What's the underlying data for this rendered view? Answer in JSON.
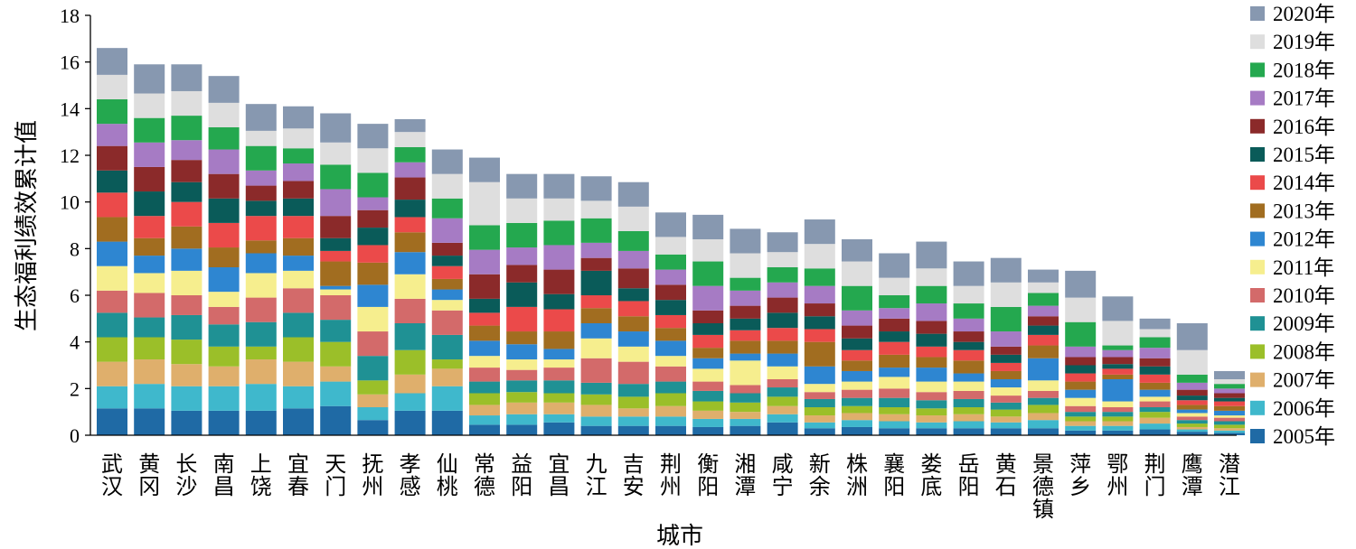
{
  "chart_data": {
    "type": "bar",
    "stacked": true,
    "title": "",
    "xlabel": "城市",
    "ylabel": "生态福利绩效累计值",
    "ylim": [
      0,
      18
    ],
    "yticks": [
      0,
      2,
      4,
      6,
      8,
      10,
      12,
      14,
      16,
      18
    ],
    "grid": false,
    "legend_position": "right",
    "categories": [
      "武汉",
      "黄冈",
      "长沙",
      "南昌",
      "上饶",
      "宜春",
      "天门",
      "抚州",
      "孝感",
      "仙桃",
      "常德",
      "益阳",
      "宜昌",
      "九江",
      "吉安",
      "荆州",
      "衡阳",
      "湘潭",
      "咸宁",
      "新余",
      "株洲",
      "襄阳",
      "娄底",
      "岳阳",
      "黄石",
      "景德镇",
      "萍乡",
      "鄂州",
      "荆门",
      "鹰潭",
      "潜江"
    ],
    "series": [
      {
        "name": "2005年",
        "color": "#1f6aa5",
        "values": [
          1.15,
          1.15,
          1.05,
          1.05,
          1.05,
          1.15,
          1.25,
          0.65,
          1.05,
          1.05,
          0.45,
          0.45,
          0.55,
          0.4,
          0.4,
          0.4,
          0.35,
          0.4,
          0.55,
          0.3,
          0.35,
          0.3,
          0.3,
          0.3,
          0.3,
          0.3,
          0.2,
          0.2,
          0.25,
          0.15,
          0.1
        ]
      },
      {
        "name": "2006年",
        "color": "#3fb8cc",
        "values": [
          0.95,
          1.05,
          1.05,
          1.05,
          1.15,
          0.95,
          1.05,
          0.55,
          0.75,
          1.05,
          0.4,
          0.45,
          0.35,
          0.4,
          0.4,
          0.4,
          0.35,
          0.3,
          0.35,
          0.25,
          0.3,
          0.3,
          0.25,
          0.3,
          0.25,
          0.35,
          0.2,
          0.2,
          0.25,
          0.1,
          0.1
        ]
      },
      {
        "name": "2007年",
        "color": "#dfaf6c",
        "values": [
          1.05,
          1.05,
          0.95,
          0.85,
          1.05,
          1.05,
          0.65,
          0.55,
          0.8,
          0.75,
          0.45,
          0.5,
          0.5,
          0.5,
          0.35,
          0.45,
          0.35,
          0.3,
          0.35,
          0.3,
          0.3,
          0.3,
          0.3,
          0.3,
          0.25,
          0.3,
          0.2,
          0.2,
          0.25,
          0.1,
          0.1
        ]
      },
      {
        "name": "2008年",
        "color": "#9bbf29",
        "values": [
          1.05,
          0.95,
          1.05,
          0.85,
          0.55,
          1.05,
          1.05,
          0.6,
          1.05,
          0.4,
          0.5,
          0.45,
          0.4,
          0.45,
          0.5,
          0.55,
          0.4,
          0.4,
          0.4,
          0.35,
          0.3,
          0.3,
          0.3,
          0.3,
          0.3,
          0.35,
          0.2,
          0.2,
          0.25,
          0.15,
          0.15
        ]
      },
      {
        "name": "2009年",
        "color": "#1f9194",
        "values": [
          1.05,
          0.85,
          1.05,
          0.95,
          1.05,
          1.05,
          0.95,
          1.05,
          1.15,
          1.05,
          0.5,
          0.5,
          0.55,
          0.5,
          0.55,
          0.5,
          0.45,
          0.4,
          0.4,
          0.35,
          0.35,
          0.4,
          0.35,
          0.35,
          0.3,
          0.3,
          0.2,
          0.2,
          0.2,
          0.15,
          0.15
        ]
      },
      {
        "name": "2010年",
        "color": "#d36a6a",
        "values": [
          0.95,
          1.05,
          0.85,
          0.75,
          1.05,
          1.05,
          1.05,
          1.05,
          1.05,
          1.05,
          0.6,
          0.45,
          0.55,
          1.05,
          0.95,
          0.65,
          0.4,
          0.35,
          0.35,
          0.3,
          0.35,
          0.4,
          0.35,
          0.35,
          0.3,
          0.3,
          0.25,
          0.2,
          0.25,
          0.15,
          0.15
        ]
      },
      {
        "name": "2011年",
        "color": "#f6ee8e",
        "values": [
          1.05,
          0.85,
          1.05,
          0.65,
          1.05,
          0.75,
          0.25,
          1.05,
          1.05,
          0.45,
          0.5,
          0.45,
          0.35,
          0.85,
          0.65,
          0.45,
          0.55,
          1.05,
          0.55,
          0.35,
          0.35,
          0.5,
          0.45,
          0.4,
          0.35,
          0.45,
          0.35,
          0.25,
          0.2,
          0.15,
          0.1
        ]
      },
      {
        "name": "2012年",
        "color": "#2e86d1",
        "values": [
          1.05,
          0.75,
          0.95,
          1.05,
          0.85,
          0.65,
          0.15,
          0.95,
          0.95,
          0.45,
          0.65,
          0.65,
          0.45,
          0.65,
          0.65,
          0.65,
          0.45,
          0.3,
          0.55,
          0.75,
          0.45,
          0.4,
          0.6,
          0.35,
          0.35,
          0.95,
          0.35,
          0.95,
          0.3,
          0.15,
          0.2
        ]
      },
      {
        "name": "2013年",
        "color": "#a16d20",
        "values": [
          1.05,
          0.75,
          0.95,
          0.85,
          0.55,
          0.75,
          1.05,
          0.95,
          0.85,
          0.45,
          0.65,
          0.55,
          0.75,
          0.65,
          0.65,
          0.55,
          0.45,
          0.55,
          0.55,
          1.05,
          0.45,
          0.55,
          0.45,
          0.55,
          0.35,
          0.55,
          0.35,
          0.2,
          0.3,
          0.2,
          0.2
        ]
      },
      {
        "name": "2014年",
        "color": "#eb4a4a",
        "values": [
          1.05,
          0.95,
          1.05,
          1.05,
          1.05,
          0.95,
          0.45,
          0.75,
          0.65,
          0.55,
          0.55,
          1.05,
          0.95,
          0.55,
          0.65,
          0.55,
          0.55,
          0.45,
          0.55,
          0.55,
          0.45,
          0.55,
          0.45,
          0.45,
          0.35,
          0.45,
          0.35,
          0.25,
          0.35,
          0.2,
          0.2
        ]
      },
      {
        "name": "2015年",
        "color": "#0a5b59",
        "values": [
          0.95,
          1.05,
          0.85,
          1.05,
          0.65,
          0.75,
          0.55,
          0.75,
          0.75,
          0.45,
          0.6,
          1.05,
          0.65,
          1.05,
          0.55,
          0.65,
          0.5,
          0.5,
          0.65,
          0.55,
          0.5,
          0.45,
          0.55,
          0.35,
          0.35,
          0.4,
          0.35,
          0.2,
          0.35,
          0.2,
          0.15
        ]
      },
      {
        "name": "2016年",
        "color": "#8b2a2a",
        "values": [
          1.05,
          1.05,
          0.95,
          1.05,
          0.65,
          0.75,
          0.95,
          0.75,
          0.95,
          0.55,
          1.05,
          0.75,
          1.05,
          0.55,
          0.85,
          0.65,
          0.55,
          0.55,
          0.65,
          0.55,
          0.55,
          0.55,
          0.55,
          0.45,
          0.35,
          0.4,
          0.35,
          0.3,
          0.35,
          0.25,
          0.2
        ]
      },
      {
        "name": "2017年",
        "color": "#a67bc4",
        "values": [
          0.95,
          1.05,
          0.85,
          1.05,
          0.65,
          0.75,
          1.15,
          0.55,
          0.65,
          1.05,
          1.05,
          0.75,
          1.05,
          0.65,
          0.75,
          0.65,
          1.05,
          0.65,
          0.65,
          0.75,
          0.65,
          0.45,
          0.75,
          0.55,
          0.65,
          0.45,
          0.45,
          0.3,
          0.45,
          0.3,
          0.2
        ]
      },
      {
        "name": "2018年",
        "color": "#24a84f",
        "values": [
          1.05,
          1.05,
          1.05,
          0.95,
          1.05,
          0.65,
          1.05,
          1.05,
          0.65,
          0.85,
          1.05,
          1.05,
          1.05,
          1.05,
          0.85,
          0.65,
          1.05,
          0.55,
          0.65,
          0.75,
          1.05,
          0.55,
          0.75,
          0.65,
          1.05,
          0.55,
          1.05,
          0.2,
          0.45,
          0.35,
          0.2
        ]
      },
      {
        "name": "2019年",
        "color": "#dedede",
        "values": [
          1.05,
          1.05,
          1.05,
          1.05,
          0.65,
          0.85,
          0.95,
          1.05,
          0.65,
          1.05,
          1.85,
          1.05,
          0.95,
          0.75,
          1.05,
          0.75,
          0.95,
          1.05,
          0.65,
          1.05,
          1.05,
          0.75,
          0.75,
          0.75,
          1.05,
          0.45,
          1.05,
          1.05,
          0.35,
          1.05,
          0.2
        ]
      },
      {
        "name": "2020年",
        "color": "#8798b0",
        "values": [
          1.15,
          1.25,
          1.15,
          1.15,
          1.15,
          0.95,
          1.25,
          1.05,
          0.55,
          1.05,
          1.05,
          1.05,
          1.05,
          1.05,
          1.05,
          1.05,
          1.05,
          1.05,
          0.85,
          1.05,
          0.95,
          1.05,
          1.15,
          1.05,
          1.05,
          0.55,
          1.15,
          1.05,
          0.45,
          1.15,
          0.35
        ]
      }
    ]
  }
}
